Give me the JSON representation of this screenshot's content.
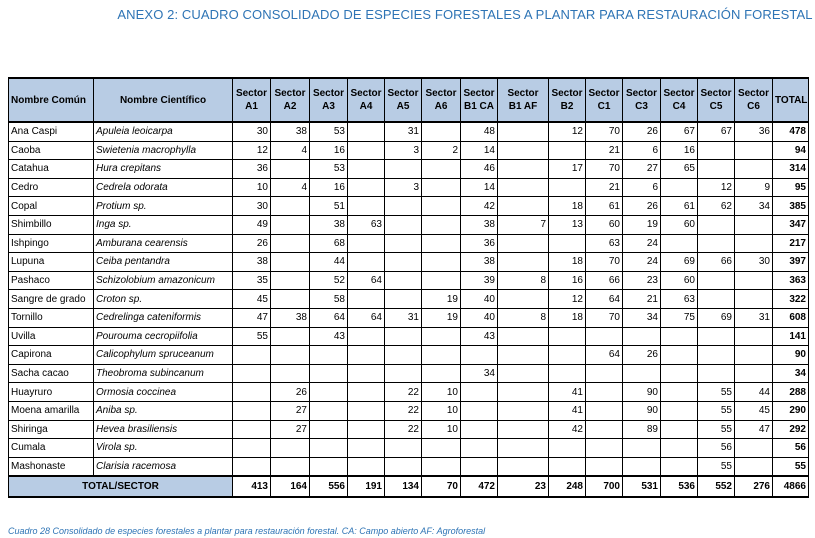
{
  "title": "ANEXO 2:  CUADRO CONSOLIDADO DE ESPECIES FORESTALES A PLANTAR PARA RESTAURACIÓN FORESTAL",
  "colors": {
    "header_bg": "#b8cce4",
    "title": "#2e74b5"
  },
  "table": {
    "headers": [
      "Nombre Común",
      "Nombre Científico",
      "Sector A1",
      "Sector A2",
      "Sector A3",
      "Sector A4",
      "Sector A5",
      "Sector A6",
      "Sector B1 CA",
      "Sector B1 AF",
      "Sector B2",
      "Sector C1",
      "Sector C3",
      "Sector C4",
      "Sector C5",
      "Sector C6",
      "TOTAL"
    ],
    "rows": [
      [
        "Ana Caspi",
        "Apuleia leoicarpa",
        "30",
        "38",
        "53",
        "",
        "31",
        "",
        "48",
        "",
        "12",
        "70",
        "26",
        "67",
        "67",
        "36",
        "478"
      ],
      [
        "Caoba",
        "Swietenia macrophylla",
        "12",
        "4",
        "16",
        "",
        "3",
        "2",
        "14",
        "",
        "",
        "21",
        "6",
        "16",
        "",
        "",
        "94"
      ],
      [
        "Catahua",
        "Hura crepitans",
        "36",
        "",
        "53",
        "",
        "",
        "",
        "46",
        "",
        "17",
        "70",
        "27",
        "65",
        "",
        "",
        "314"
      ],
      [
        "Cedro",
        "Cedrela odorata",
        "10",
        "4",
        "16",
        "",
        "3",
        "",
        "14",
        "",
        "",
        "21",
        "6",
        "",
        "12",
        "9",
        "95"
      ],
      [
        "Copal",
        "Protium sp.",
        "30",
        "",
        "51",
        "",
        "",
        "",
        "42",
        "",
        "18",
        "61",
        "26",
        "61",
        "62",
        "34",
        "385"
      ],
      [
        "Shimbillo",
        "Inga sp.",
        "49",
        "",
        "38",
        "63",
        "",
        "",
        "38",
        "7",
        "13",
        "60",
        "19",
        "60",
        "",
        "",
        "347"
      ],
      [
        "Ishpingo",
        "Amburana cearensis",
        "26",
        "",
        "68",
        "",
        "",
        "",
        "36",
        "",
        "",
        "63",
        "24",
        "",
        "",
        "",
        "217"
      ],
      [
        "Lupuna",
        "Ceiba pentandra",
        "38",
        "",
        "44",
        "",
        "",
        "",
        "38",
        "",
        "18",
        "70",
        "24",
        "69",
        "66",
        "30",
        "397"
      ],
      [
        "Pashaco",
        "Schizolobium amazonicum",
        "35",
        "",
        "52",
        "64",
        "",
        "",
        "39",
        "8",
        "16",
        "66",
        "23",
        "60",
        "",
        "",
        "363"
      ],
      [
        "Sangre de grado",
        "Croton sp.",
        "45",
        "",
        "58",
        "",
        "",
        "19",
        "40",
        "",
        "12",
        "64",
        "21",
        "63",
        "",
        "",
        "322"
      ],
      [
        "Tornillo",
        "Cedrelinga cateniformis",
        "47",
        "38",
        "64",
        "64",
        "31",
        "19",
        "40",
        "8",
        "18",
        "70",
        "34",
        "75",
        "69",
        "31",
        "608"
      ],
      [
        "Uvilla",
        "Pourouma cecropiifolia",
        "55",
        "",
        "43",
        "",
        "",
        "",
        "43",
        "",
        "",
        "",
        "",
        "",
        "",
        "",
        "141"
      ],
      [
        "Capirona",
        "Calicophylum spruceanum",
        "",
        "",
        "",
        "",
        "",
        "",
        "",
        "",
        "",
        "64",
        "26",
        "",
        "",
        "",
        "90"
      ],
      [
        "Sacha cacao",
        "Theobroma subincanum",
        "",
        "",
        "",
        "",
        "",
        "",
        "34",
        "",
        "",
        "",
        "",
        "",
        "",
        "",
        "34"
      ],
      [
        "Huayruro",
        "Ormosia coccinea",
        "",
        "26",
        "",
        "",
        "22",
        "10",
        "",
        "",
        "41",
        "",
        "90",
        "",
        "55",
        "44",
        "288"
      ],
      [
        "Moena amarilla",
        "Aniba sp.",
        "",
        "27",
        "",
        "",
        "22",
        "10",
        "",
        "",
        "41",
        "",
        "90",
        "",
        "55",
        "45",
        "290"
      ],
      [
        "Shiringa",
        "Hevea brasiliensis",
        "",
        "27",
        "",
        "",
        "22",
        "10",
        "",
        "",
        "42",
        "",
        "89",
        "",
        "55",
        "47",
        "292"
      ],
      [
        "Cumala",
        "Virola sp.",
        "",
        "",
        "",
        "",
        "",
        "",
        "",
        "",
        "",
        "",
        "",
        "",
        "56",
        "",
        "56"
      ],
      [
        "Mashonaste",
        "Clarisia racemosa",
        "",
        "",
        "",
        "",
        "",
        "",
        "",
        "",
        "",
        "",
        "",
        "",
        "55",
        "",
        "55"
      ]
    ],
    "total_row": {
      "label": "TOTAL/SECTOR",
      "values": [
        "413",
        "164",
        "556",
        "191",
        "134",
        "70",
        "472",
        "23",
        "248",
        "700",
        "531",
        "536",
        "552",
        "276",
        "4866"
      ]
    }
  },
  "caption": "Cuadro 28 Consolidado de especies forestales a plantar para restauración forestal. CA: Campo abierto AF: Agroforestal"
}
